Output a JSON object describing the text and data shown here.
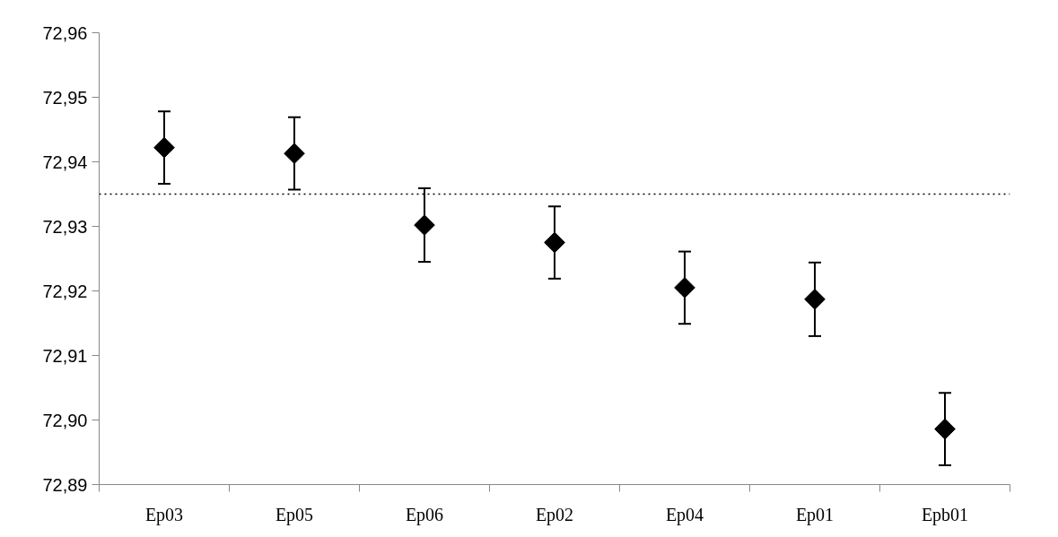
{
  "chart_data": {
    "type": "scatter",
    "categories": [
      "Ep03",
      "Ep05",
      "Ep06",
      "Ep02",
      "Ep04",
      "Ep01",
      "Epb01"
    ],
    "values": [
      72.9422,
      72.9413,
      72.9302,
      72.9275,
      72.9205,
      72.9187,
      72.8986
    ],
    "errors": [
      0.0056,
      0.0056,
      0.0057,
      0.0056,
      0.0056,
      0.0057,
      0.0056
    ],
    "color": "#000000",
    "marker": "diamond",
    "ylim": [
      72.89,
      72.96
    ],
    "yticks": [
      {
        "value": 72.89,
        "label": "72,89"
      },
      {
        "value": 72.9,
        "label": "72,90"
      },
      {
        "value": 72.91,
        "label": "72,91"
      },
      {
        "value": 72.92,
        "label": "72,92"
      },
      {
        "value": 72.93,
        "label": "72,93"
      },
      {
        "value": 72.94,
        "label": "72,94"
      },
      {
        "value": 72.95,
        "label": "72,95"
      },
      {
        "value": 72.96,
        "label": "72,96"
      }
    ],
    "ref_lines": [
      {
        "axis": "y",
        "value": 72.935,
        "label": null,
        "color": "#000000",
        "line_style": "dotted"
      }
    ],
    "grid": false
  }
}
